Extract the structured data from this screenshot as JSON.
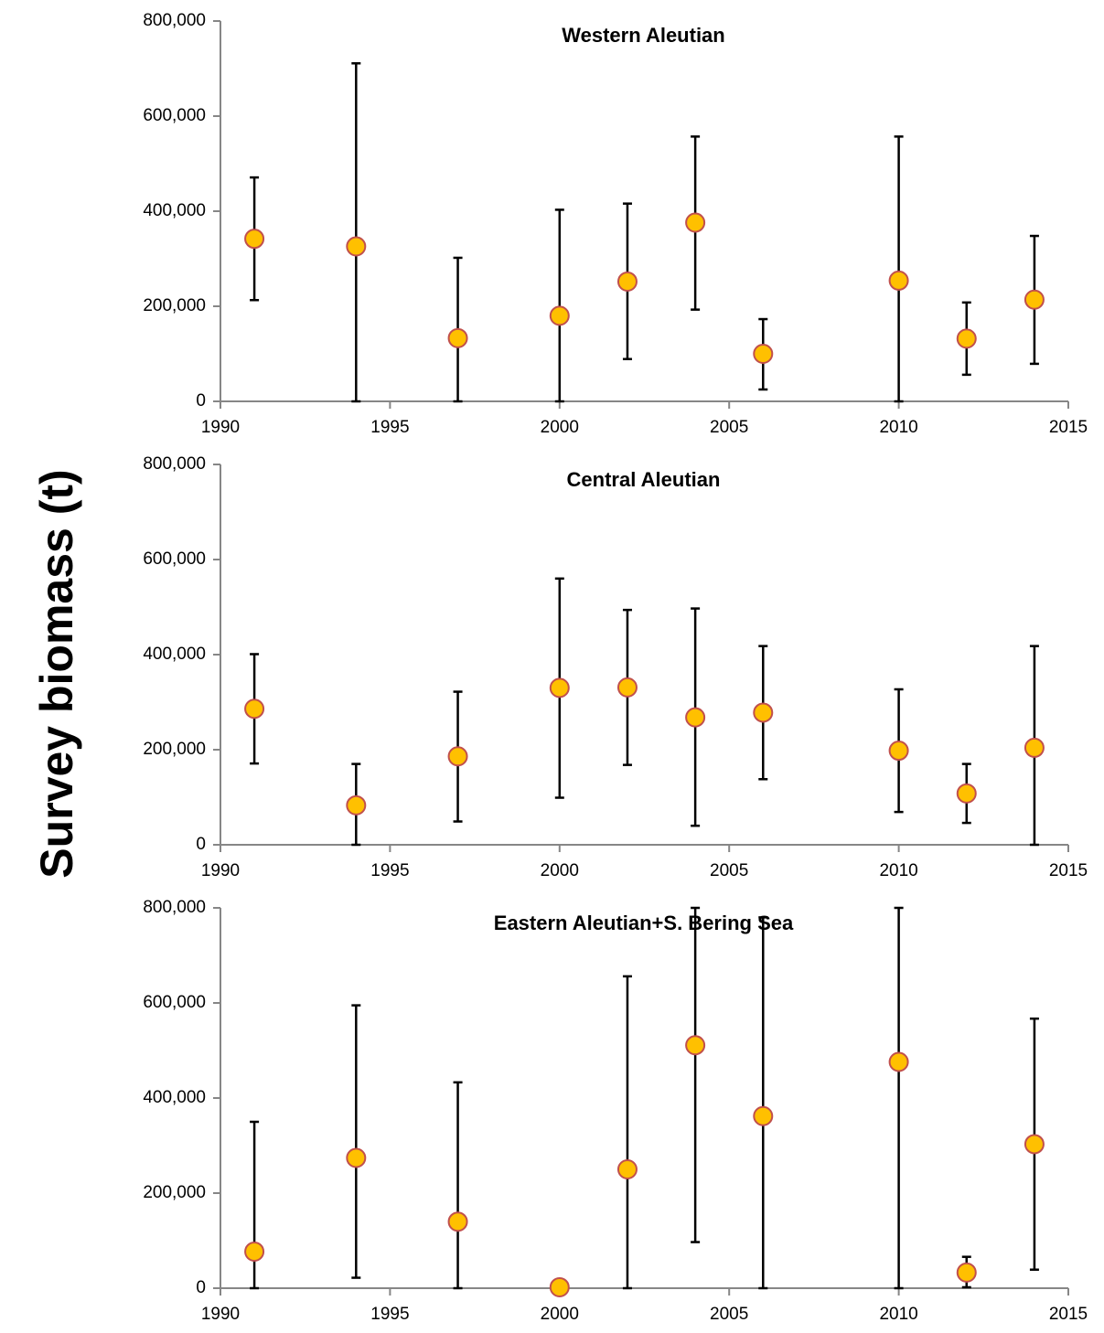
{
  "figure": {
    "ylabel": "Survey biomass (t)"
  },
  "chart_data": [
    {
      "type": "scatter",
      "title": "Western Aleutian",
      "xlim": [
        1990,
        2015
      ],
      "ylim": [
        0,
        800000
      ],
      "xticks": [
        1990,
        1995,
        2000,
        2005,
        2010,
        2015
      ],
      "yticks": [
        0,
        200000,
        400000,
        600000,
        800000
      ],
      "x_tick_labels": [
        "1990",
        "1995",
        "2000",
        "2005",
        "2010",
        "2015"
      ],
      "y_tick_labels": [
        "0",
        "200,000",
        "400,000",
        "600,000",
        "800,000"
      ],
      "points": [
        {
          "x": 1991,
          "y": 342000,
          "low": 213000,
          "high": 471000
        },
        {
          "x": 1994,
          "y": 326000,
          "low": 0,
          "high": 711000
        },
        {
          "x": 1997,
          "y": 133000,
          "low": 0,
          "high": 302000
        },
        {
          "x": 2000,
          "y": 180000,
          "low": 0,
          "high": 403000
        },
        {
          "x": 2002,
          "y": 252000,
          "low": 89000,
          "high": 416000
        },
        {
          "x": 2004,
          "y": 376000,
          "low": 193000,
          "high": 557000
        },
        {
          "x": 2006,
          "y": 100000,
          "low": 25000,
          "high": 173000
        },
        {
          "x": 2010,
          "y": 254000,
          "low": 0,
          "high": 557000
        },
        {
          "x": 2012,
          "y": 132000,
          "low": 56000,
          "high": 208000
        },
        {
          "x": 2014,
          "y": 214000,
          "low": 79000,
          "high": 348000
        }
      ]
    },
    {
      "type": "scatter",
      "title": "Central Aleutian",
      "xlim": [
        1990,
        2015
      ],
      "ylim": [
        0,
        800000
      ],
      "xticks": [
        1990,
        1995,
        2000,
        2005,
        2010,
        2015
      ],
      "yticks": [
        0,
        200000,
        400000,
        600000,
        800000
      ],
      "x_tick_labels": [
        "1990",
        "1995",
        "2000",
        "2005",
        "2010",
        "2015"
      ],
      "y_tick_labels": [
        "0",
        "200,000",
        "400,000",
        "600,000",
        "800,000"
      ],
      "points": [
        {
          "x": 1991,
          "y": 286000,
          "low": 171000,
          "high": 401000
        },
        {
          "x": 1994,
          "y": 83000,
          "low": 0,
          "high": 170000
        },
        {
          "x": 1997,
          "y": 186000,
          "low": 49000,
          "high": 322000
        },
        {
          "x": 2000,
          "y": 330000,
          "low": 99000,
          "high": 560000
        },
        {
          "x": 2002,
          "y": 331000,
          "low": 168000,
          "high": 494000
        },
        {
          "x": 2004,
          "y": 268000,
          "low": 40000,
          "high": 497000
        },
        {
          "x": 2006,
          "y": 278000,
          "low": 138000,
          "high": 418000
        },
        {
          "x": 2010,
          "y": 198000,
          "low": 69000,
          "high": 327000
        },
        {
          "x": 2012,
          "y": 108000,
          "low": 46000,
          "high": 170000
        },
        {
          "x": 2014,
          "y": 204000,
          "low": 0,
          "high": 418000
        }
      ]
    },
    {
      "type": "scatter",
      "title": "Eastern Aleutian+S. Bering Sea",
      "xlim": [
        1990,
        2015
      ],
      "ylim": [
        0,
        800000
      ],
      "xticks": [
        1990,
        1995,
        2000,
        2005,
        2010,
        2015
      ],
      "yticks": [
        0,
        200000,
        400000,
        600000,
        800000
      ],
      "x_tick_labels": [
        "1990",
        "1995",
        "2000",
        "2005",
        "2010",
        "2015"
      ],
      "y_tick_labels": [
        "0",
        "200,000",
        "400,000",
        "600,000",
        "800,000"
      ],
      "points": [
        {
          "x": 1991,
          "y": 77000,
          "low": 0,
          "high": 350000
        },
        {
          "x": 1994,
          "y": 274000,
          "low": 22000,
          "high": 595000
        },
        {
          "x": 1997,
          "y": 140000,
          "low": 0,
          "high": 433000
        },
        {
          "x": 2000,
          "y": 2000,
          "low": 0,
          "high": 2000
        },
        {
          "x": 2002,
          "y": 250000,
          "low": 0,
          "high": 656000
        },
        {
          "x": 2004,
          "y": 511000,
          "low": 97000,
          "high": 800000
        },
        {
          "x": 2006,
          "y": 362000,
          "low": 0,
          "high": 780000
        },
        {
          "x": 2010,
          "y": 476000,
          "low": 0,
          "high": 800000
        },
        {
          "x": 2012,
          "y": 33000,
          "low": 2000,
          "high": 66000
        },
        {
          "x": 2014,
          "y": 303000,
          "low": 39000,
          "high": 567000
        }
      ]
    }
  ],
  "colors": {
    "marker_fill": "#FFC000",
    "marker_edge": "#C0504D",
    "axis": "#868686",
    "errorbar": "#000000"
  }
}
